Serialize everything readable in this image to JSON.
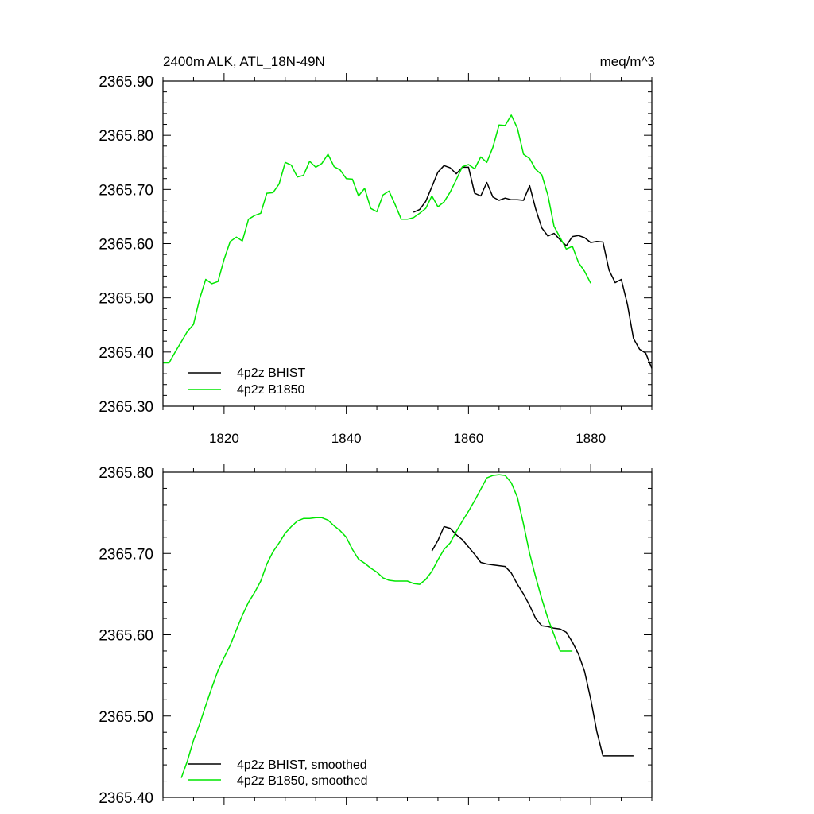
{
  "chart_data": [
    {
      "type": "line",
      "title": "2400m ALK, ATL_18N-49N",
      "units": "meq/m^3",
      "xlabel": "",
      "ylabel": "",
      "xlim": [
        1810,
        1890
      ],
      "ylim": [
        2365.3,
        2365.9
      ],
      "x_ticks": [
        1820,
        1840,
        1860,
        1880
      ],
      "x_tick_labels": [
        "1820",
        "1840",
        "1860",
        "1880"
      ],
      "y_ticks": [
        2365.3,
        2365.4,
        2365.5,
        2365.6,
        2365.7,
        2365.8,
        2365.9
      ],
      "y_tick_labels": [
        "2365.30",
        "2365.40",
        "2365.50",
        "2365.60",
        "2365.70",
        "2365.80",
        "2365.90"
      ],
      "legend_position": "bottom-left",
      "series": [
        {
          "name": "4p2z BHIST",
          "color": "#000000",
          "x": [
            1851,
            1852,
            1853,
            1854,
            1855,
            1856,
            1857,
            1858,
            1859,
            1860,
            1861,
            1862,
            1863,
            1864,
            1865,
            1866,
            1867,
            1868,
            1869,
            1870,
            1871,
            1872,
            1873,
            1874,
            1875,
            1876,
            1877,
            1878,
            1879,
            1880,
            1881,
            1882,
            1883,
            1884,
            1885,
            1886,
            1887,
            1888,
            1889,
            1890
          ],
          "y": [
            2365.658,
            2365.663,
            2365.678,
            2365.705,
            2365.732,
            2365.744,
            2365.74,
            2365.729,
            2365.741,
            2365.741,
            2365.693,
            2365.688,
            2365.713,
            2365.686,
            2365.68,
            2365.684,
            2365.681,
            2365.681,
            2365.68,
            2365.707,
            2365.664,
            2365.629,
            2365.614,
            2365.619,
            2365.607,
            2365.596,
            2365.613,
            2365.615,
            2365.611,
            2365.602,
            2365.604,
            2365.603,
            2365.551,
            2365.528,
            2365.534,
            2365.488,
            2365.425,
            2365.405,
            2365.398,
            2365.37
          ]
        },
        {
          "name": "4p2z B1850",
          "color": "#00e600",
          "x": [
            1810,
            1811,
            1812,
            1813,
            1814,
            1815,
            1816,
            1817,
            1818,
            1819,
            1820,
            1821,
            1822,
            1823,
            1824,
            1825,
            1826,
            1827,
            1828,
            1829,
            1830,
            1831,
            1832,
            1833,
            1834,
            1835,
            1836,
            1837,
            1838,
            1839,
            1840,
            1841,
            1842,
            1843,
            1844,
            1845,
            1846,
            1847,
            1848,
            1849,
            1850,
            1851,
            1852,
            1853,
            1854,
            1855,
            1856,
            1857,
            1858,
            1859,
            1860,
            1861,
            1862,
            1863,
            1864,
            1865,
            1866,
            1867,
            1868,
            1869,
            1870,
            1871,
            1872,
            1873,
            1874,
            1875,
            1876,
            1877,
            1878,
            1879,
            1880
          ],
          "y": [
            2365.38,
            2365.38,
            2365.4,
            2365.419,
            2365.438,
            2365.451,
            2365.498,
            2365.534,
            2365.526,
            2365.53,
            2365.571,
            2365.604,
            2365.612,
            2365.605,
            2365.645,
            2365.652,
            2365.656,
            2365.693,
            2365.694,
            2365.71,
            2365.75,
            2365.745,
            2365.723,
            2365.726,
            2365.752,
            2365.741,
            2365.748,
            2365.765,
            2365.742,
            2365.736,
            2365.72,
            2365.719,
            2365.688,
            2365.702,
            2365.665,
            2365.659,
            2365.69,
            2365.697,
            2365.672,
            2365.645,
            2365.645,
            2365.648,
            2365.656,
            2365.665,
            2365.688,
            2365.668,
            2365.677,
            2365.695,
            2365.718,
            2365.742,
            2365.746,
            2365.738,
            2365.76,
            2365.75,
            2365.778,
            2365.819,
            2365.818,
            2365.837,
            2365.813,
            2365.765,
            2365.757,
            2365.737,
            2365.727,
            2365.689,
            2365.632,
            2365.611,
            2365.59,
            2365.595,
            2365.565,
            2365.549,
            2365.527
          ]
        }
      ]
    },
    {
      "type": "line",
      "title": "",
      "xlabel": "",
      "ylabel": "",
      "xlim": [
        1810,
        1890
      ],
      "ylim": [
        2365.4,
        2365.8
      ],
      "x_ticks": [
        1820,
        1840,
        1860,
        1880
      ],
      "x_tick_labels": [],
      "y_ticks": [
        2365.4,
        2365.5,
        2365.6,
        2365.7,
        2365.8
      ],
      "y_tick_labels": [
        "2365.40",
        "2365.50",
        "2365.60",
        "2365.70",
        "2365.80"
      ],
      "legend_position": "bottom-left",
      "series": [
        {
          "name": "4p2z BHIST, smoothed",
          "color": "#000000",
          "x": [
            1854,
            1855,
            1856,
            1857,
            1858,
            1859,
            1860,
            1861,
            1862,
            1863,
            1864,
            1865,
            1866,
            1867,
            1868,
            1869,
            1870,
            1871,
            1872,
            1873,
            1874,
            1875,
            1876,
            1877,
            1878,
            1879,
            1880,
            1881,
            1882,
            1883,
            1884,
            1885,
            1886,
            1887
          ],
          "y": [
            2365.703,
            2365.716,
            2365.733,
            2365.731,
            2365.723,
            2365.717,
            2365.708,
            2365.699,
            2365.689,
            2365.687,
            2365.686,
            2365.685,
            2365.684,
            2365.676,
            2365.662,
            2365.65,
            2365.636,
            2365.62,
            2365.611,
            2365.61,
            2365.608,
            2365.607,
            2365.603,
            2365.591,
            2365.576,
            2365.555,
            2365.521,
            2365.481,
            2365.451,
            2365.451,
            2365.451,
            2365.451,
            2365.451,
            2365.451
          ]
        },
        {
          "name": "4p2z B1850, smoothed",
          "color": "#00e600",
          "x": [
            1813,
            1814,
            1815,
            1816,
            1817,
            1818,
            1819,
            1820,
            1821,
            1822,
            1823,
            1824,
            1825,
            1826,
            1827,
            1828,
            1829,
            1830,
            1831,
            1832,
            1833,
            1834,
            1835,
            1836,
            1837,
            1838,
            1839,
            1840,
            1841,
            1842,
            1843,
            1844,
            1845,
            1846,
            1847,
            1848,
            1849,
            1850,
            1851,
            1852,
            1853,
            1854,
            1855,
            1856,
            1857,
            1858,
            1859,
            1860,
            1861,
            1862,
            1863,
            1864,
            1865,
            1866,
            1867,
            1868,
            1869,
            1870,
            1871,
            1872,
            1873,
            1874,
            1875,
            1876,
            1877
          ],
          "y": [
            2365.424,
            2365.445,
            2365.47,
            2365.49,
            2365.513,
            2365.535,
            2365.556,
            2365.572,
            2365.587,
            2365.606,
            2365.624,
            2365.64,
            2365.652,
            2365.666,
            2365.687,
            2365.702,
            2365.713,
            2365.725,
            2365.733,
            2365.74,
            2365.743,
            2365.743,
            2365.744,
            2365.744,
            2365.741,
            2365.734,
            2365.728,
            2365.72,
            2365.705,
            2365.693,
            2365.688,
            2365.682,
            2365.677,
            2365.67,
            2365.667,
            2365.666,
            2365.666,
            2365.666,
            2365.663,
            2365.662,
            2365.668,
            2365.678,
            2365.692,
            2365.705,
            2365.713,
            2365.727,
            2365.74,
            2365.752,
            2365.765,
            2365.779,
            2365.793,
            2365.796,
            2365.797,
            2365.796,
            2365.787,
            2365.769,
            2365.736,
            2365.7,
            2365.671,
            2365.644,
            2365.62,
            2365.6,
            2365.58,
            2365.58,
            2365.58
          ]
        }
      ]
    }
  ]
}
